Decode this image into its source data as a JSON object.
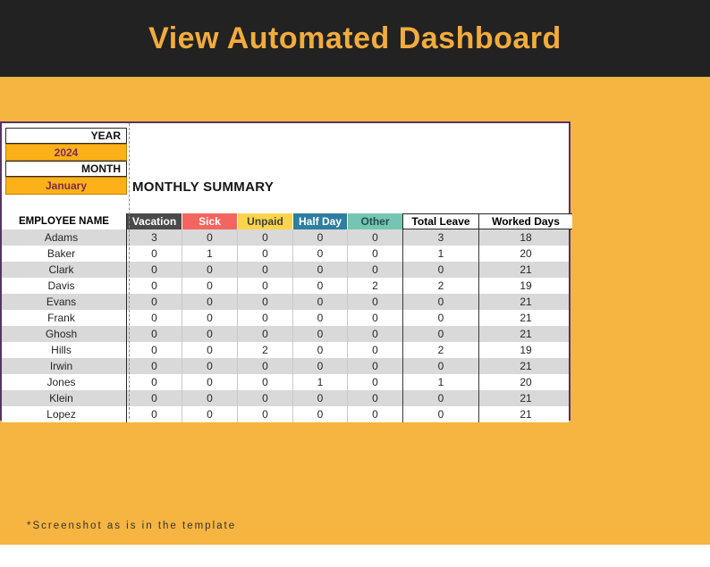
{
  "banner": {
    "title": "View Automated Dashboard",
    "bg_color": "#222222",
    "text_color": "#F2AC3B"
  },
  "page": {
    "bg_color": "#F6B441",
    "footnote": "*Screenshot as is in the template"
  },
  "panel": {
    "year_label": "YEAR",
    "year_value": "2024",
    "month_label": "MONTH",
    "month_value": "January",
    "employee_header": "EMPLOYEE NAME",
    "summary_title": "MONTHLY SUMMARY",
    "selector_cell_color": "#FBB117",
    "selector_text_color": "#7D2B50"
  },
  "table": {
    "columns": [
      "Vacation",
      "Sick",
      "Unpaid",
      "Half Day",
      "Other",
      "Total Leave",
      "Worked Days"
    ],
    "column_colors": {
      "Vacation": "#4A4A4A",
      "Sick": "#F4655F",
      "Unpaid": "#FBD44C",
      "Half Day": "#2E7E9F",
      "Other": "#74C6B2",
      "Total Leave": "#FFFFFF",
      "Worked Days": "#FFFFFF"
    },
    "alt_row_color": "#D9D9D9",
    "rows": [
      {
        "name": "Adams",
        "values": [
          3,
          0,
          0,
          0,
          0,
          3,
          18
        ]
      },
      {
        "name": "Baker",
        "values": [
          0,
          1,
          0,
          0,
          0,
          1,
          20
        ]
      },
      {
        "name": "Clark",
        "values": [
          0,
          0,
          0,
          0,
          0,
          0,
          21
        ]
      },
      {
        "name": "Davis",
        "values": [
          0,
          0,
          0,
          0,
          2,
          2,
          19
        ]
      },
      {
        "name": "Evans",
        "values": [
          0,
          0,
          0,
          0,
          0,
          0,
          21
        ]
      },
      {
        "name": "Frank",
        "values": [
          0,
          0,
          0,
          0,
          0,
          0,
          21
        ]
      },
      {
        "name": "Ghosh",
        "values": [
          0,
          0,
          0,
          0,
          0,
          0,
          21
        ]
      },
      {
        "name": "Hills",
        "values": [
          0,
          0,
          2,
          0,
          0,
          2,
          19
        ]
      },
      {
        "name": "Irwin",
        "values": [
          0,
          0,
          0,
          0,
          0,
          0,
          21
        ]
      },
      {
        "name": "Jones",
        "values": [
          0,
          0,
          0,
          1,
          0,
          1,
          20
        ]
      },
      {
        "name": "Klein",
        "values": [
          0,
          0,
          0,
          0,
          0,
          0,
          21
        ]
      },
      {
        "name": "Lopez",
        "values": [
          0,
          0,
          0,
          0,
          0,
          0,
          21
        ]
      }
    ]
  }
}
